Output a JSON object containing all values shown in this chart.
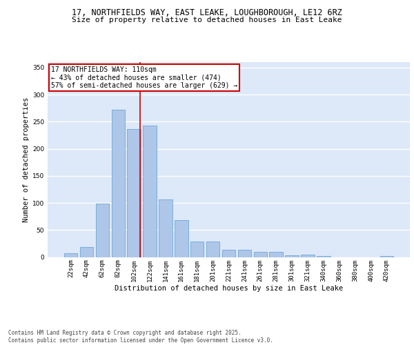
{
  "title1": "17, NORTHFIELDS WAY, EAST LEAKE, LOUGHBOROUGH, LE12 6RZ",
  "title2": "Size of property relative to detached houses in East Leake",
  "xlabel": "Distribution of detached houses by size in East Leake",
  "ylabel": "Number of detached properties",
  "bar_color": "#aec6e8",
  "bar_edge_color": "#5a9fd4",
  "bg_color": "#dde8f8",
  "grid_color": "#ffffff",
  "categories": [
    "22sqm",
    "42sqm",
    "62sqm",
    "82sqm",
    "102sqm",
    "122sqm",
    "141sqm",
    "161sqm",
    "181sqm",
    "201sqm",
    "221sqm",
    "241sqm",
    "261sqm",
    "281sqm",
    "301sqm",
    "321sqm",
    "340sqm",
    "360sqm",
    "380sqm",
    "400sqm",
    "420sqm"
  ],
  "values": [
    7,
    18,
    99,
    272,
    236,
    243,
    106,
    68,
    29,
    29,
    14,
    14,
    9,
    10,
    3,
    4,
    2,
    0,
    0,
    0,
    2
  ],
  "vline_color": "#cc0000",
  "annotation_text": "17 NORTHFIELDS WAY: 110sqm\n← 43% of detached houses are smaller (474)\n57% of semi-detached houses are larger (629) →",
  "annotation_box_color": "#ffffff",
  "annotation_box_edge_color": "#cc0000",
  "ylim": [
    0,
    360
  ],
  "yticks": [
    0,
    50,
    100,
    150,
    200,
    250,
    300,
    350
  ],
  "footnote": "Contains HM Land Registry data © Crown copyright and database right 2025.\nContains public sector information licensed under the Open Government Licence v3.0.",
  "title1_fontsize": 8.5,
  "title2_fontsize": 8,
  "tick_fontsize": 6.5,
  "ylabel_fontsize": 7.5,
  "xlabel_fontsize": 7.5,
  "annotation_fontsize": 7,
  "footnote_fontsize": 5.5
}
